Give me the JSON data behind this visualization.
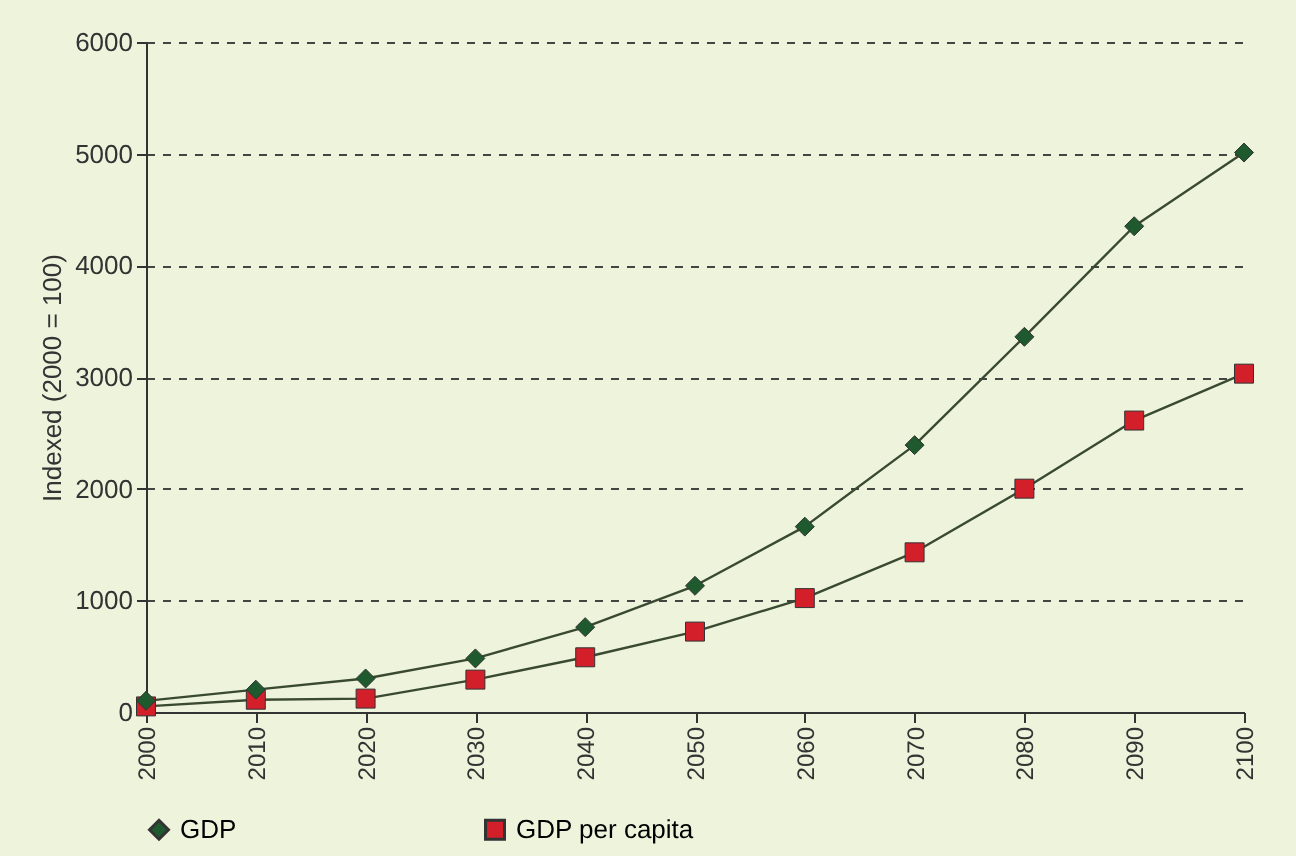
{
  "chart_data": {
    "type": "line",
    "ylabel": "Indexed (2000 = 100)",
    "categories": [
      "2000",
      "2010",
      "2020",
      "2030",
      "2040",
      "2050",
      "2060",
      "2070",
      "2080",
      "2090",
      "2100"
    ],
    "series": [
      {
        "name": "GDP",
        "color": "#1f5a2e",
        "marker": "diamond",
        "values": [
          100,
          200,
          300,
          480,
          760,
          1130,
          1660,
          2390,
          3360,
          4350,
          5010
        ]
      },
      {
        "name": "GDP per capita",
        "color": "#d21f2a",
        "marker": "square",
        "values": [
          50,
          110,
          120,
          290,
          490,
          720,
          1020,
          1430,
          2000,
          2610,
          3030
        ]
      }
    ],
    "ylim": [
      0,
      6000
    ],
    "yticks": [
      0,
      1000,
      2000,
      3000,
      4000,
      5000,
      6000
    ],
    "grid": "y",
    "legend": "bottom"
  }
}
